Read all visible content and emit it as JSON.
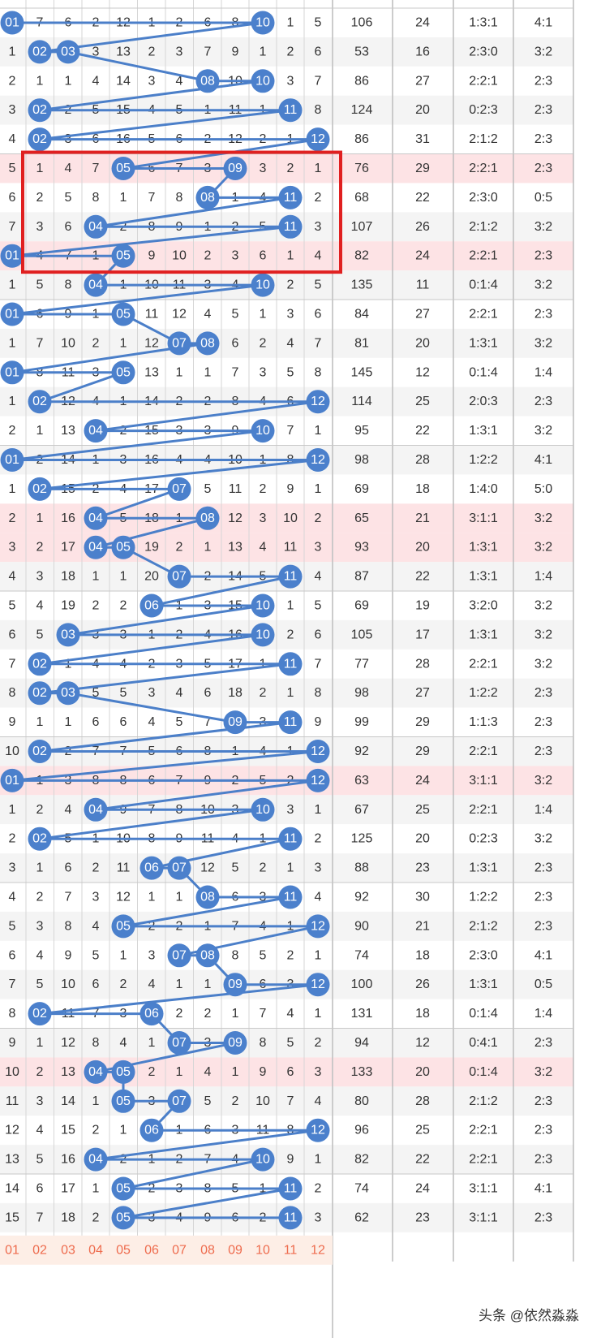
{
  "chart_data": {
    "type": "table",
    "columns": [
      "01",
      "02",
      "03",
      "04",
      "05",
      "06",
      "07",
      "08",
      "09",
      "10",
      "11",
      "12"
    ],
    "rows": [
      {
        "cells": [
          "01",
          "7",
          "6",
          "2",
          "12",
          "1",
          "2",
          "6",
          "8",
          "10",
          "1",
          "5"
        ],
        "hits": [
          1,
          10
        ],
        "sum": "106",
        "span": "24",
        "ratio1": "1:3:1",
        "ratio2": "4:1",
        "hl": false
      },
      {
        "cells": [
          "1",
          "02",
          "03",
          "3",
          "13",
          "2",
          "3",
          "7",
          "9",
          "1",
          "2",
          "6"
        ],
        "hits": [
          2,
          3
        ],
        "sum": "53",
        "span": "16",
        "ratio1": "2:3:0",
        "ratio2": "3:2",
        "hl": false
      },
      {
        "cells": [
          "2",
          "1",
          "1",
          "4",
          "14",
          "3",
          "4",
          "08",
          "10",
          "10",
          "3",
          "7"
        ],
        "hits": [
          8,
          10
        ],
        "sum": "86",
        "span": "27",
        "ratio1": "2:2:1",
        "ratio2": "2:3",
        "hl": false
      },
      {
        "cells": [
          "3",
          "02",
          "2",
          "5",
          "15",
          "4",
          "5",
          "1",
          "11",
          "1",
          "11",
          "8"
        ],
        "hits": [
          2,
          11
        ],
        "sum": "124",
        "span": "20",
        "ratio1": "0:2:3",
        "ratio2": "2:3",
        "hl": false
      },
      {
        "cells": [
          "4",
          "02",
          "3",
          "6",
          "16",
          "5",
          "6",
          "2",
          "12",
          "2",
          "1",
          "12"
        ],
        "hits": [
          2,
          12
        ],
        "sum": "86",
        "span": "31",
        "ratio1": "2:1:2",
        "ratio2": "2:3",
        "hl": false
      },
      {
        "cells": [
          "5",
          "1",
          "4",
          "7",
          "05",
          "6",
          "7",
          "3",
          "09",
          "3",
          "2",
          "1"
        ],
        "hits": [
          5,
          9
        ],
        "sum": "76",
        "span": "29",
        "ratio1": "2:2:1",
        "ratio2": "2:3",
        "hl": true
      },
      {
        "cells": [
          "6",
          "2",
          "5",
          "8",
          "1",
          "7",
          "8",
          "08",
          "1",
          "4",
          "11",
          "2"
        ],
        "hits": [
          8,
          11
        ],
        "sum": "68",
        "span": "22",
        "ratio1": "2:3:0",
        "ratio2": "0:5",
        "hl": false
      },
      {
        "cells": [
          "7",
          "3",
          "6",
          "04",
          "2",
          "8",
          "9",
          "1",
          "2",
          "5",
          "11",
          "3"
        ],
        "hits": [
          4,
          11
        ],
        "sum": "107",
        "span": "26",
        "ratio1": "2:1:2",
        "ratio2": "3:2",
        "hl": false
      },
      {
        "cells": [
          "01",
          "4",
          "7",
          "1",
          "05",
          "9",
          "10",
          "2",
          "3",
          "6",
          "1",
          "4"
        ],
        "hits": [
          1,
          5
        ],
        "sum": "82",
        "span": "24",
        "ratio1": "2:2:1",
        "ratio2": "2:3",
        "hl": true
      },
      {
        "cells": [
          "1",
          "5",
          "8",
          "04",
          "1",
          "10",
          "11",
          "3",
          "4",
          "10",
          "2",
          "5"
        ],
        "hits": [
          4,
          10
        ],
        "sum": "135",
        "span": "11",
        "ratio1": "0:1:4",
        "ratio2": "3:2",
        "hl": false
      },
      {
        "cells": [
          "01",
          "6",
          "9",
          "1",
          "05",
          "11",
          "12",
          "4",
          "5",
          "1",
          "3",
          "6"
        ],
        "hits": [
          1,
          5
        ],
        "sum": "84",
        "span": "27",
        "ratio1": "2:2:1",
        "ratio2": "2:3",
        "hl": false
      },
      {
        "cells": [
          "1",
          "7",
          "10",
          "2",
          "1",
          "12",
          "07",
          "08",
          "6",
          "2",
          "4",
          "7"
        ],
        "hits": [
          7,
          8
        ],
        "sum": "81",
        "span": "20",
        "ratio1": "1:3:1",
        "ratio2": "3:2",
        "hl": false
      },
      {
        "cells": [
          "01",
          "8",
          "11",
          "3",
          "05",
          "13",
          "1",
          "1",
          "7",
          "3",
          "5",
          "8"
        ],
        "hits": [
          1,
          5
        ],
        "sum": "145",
        "span": "12",
        "ratio1": "0:1:4",
        "ratio2": "1:4",
        "hl": false
      },
      {
        "cells": [
          "1",
          "02",
          "12",
          "4",
          "1",
          "14",
          "2",
          "2",
          "8",
          "4",
          "6",
          "12"
        ],
        "hits": [
          2,
          12
        ],
        "sum": "114",
        "span": "25",
        "ratio1": "2:0:3",
        "ratio2": "2:3",
        "hl": false
      },
      {
        "cells": [
          "2",
          "1",
          "13",
          "04",
          "2",
          "15",
          "3",
          "3",
          "9",
          "10",
          "7",
          "1"
        ],
        "hits": [
          4,
          10
        ],
        "sum": "95",
        "span": "22",
        "ratio1": "1:3:1",
        "ratio2": "3:2",
        "hl": false
      },
      {
        "cells": [
          "01",
          "2",
          "14",
          "1",
          "3",
          "16",
          "4",
          "4",
          "10",
          "1",
          "8",
          "12"
        ],
        "hits": [
          1,
          12
        ],
        "sum": "98",
        "span": "28",
        "ratio1": "1:2:2",
        "ratio2": "4:1",
        "hl": false
      },
      {
        "cells": [
          "1",
          "02",
          "15",
          "2",
          "4",
          "17",
          "07",
          "5",
          "11",
          "2",
          "9",
          "1"
        ],
        "hits": [
          2,
          7
        ],
        "sum": "69",
        "span": "18",
        "ratio1": "1:4:0",
        "ratio2": "5:0",
        "hl": false
      },
      {
        "cells": [
          "2",
          "1",
          "16",
          "04",
          "5",
          "18",
          "1",
          "08",
          "12",
          "3",
          "10",
          "2"
        ],
        "hits": [
          4,
          8
        ],
        "sum": "65",
        "span": "21",
        "ratio1": "3:1:1",
        "ratio2": "3:2",
        "hl": true
      },
      {
        "cells": [
          "3",
          "2",
          "17",
          "04",
          "05",
          "19",
          "2",
          "1",
          "13",
          "4",
          "11",
          "3"
        ],
        "hits": [
          4,
          5
        ],
        "sum": "93",
        "span": "20",
        "ratio1": "1:3:1",
        "ratio2": "3:2",
        "hl": true
      },
      {
        "cells": [
          "4",
          "3",
          "18",
          "1",
          "1",
          "20",
          "07",
          "2",
          "14",
          "5",
          "11",
          "4"
        ],
        "hits": [
          7,
          11
        ],
        "sum": "87",
        "span": "22",
        "ratio1": "1:3:1",
        "ratio2": "1:4",
        "hl": false
      },
      {
        "cells": [
          "5",
          "4",
          "19",
          "2",
          "2",
          "06",
          "1",
          "3",
          "15",
          "10",
          "1",
          "5"
        ],
        "hits": [
          6,
          10
        ],
        "sum": "69",
        "span": "19",
        "ratio1": "3:2:0",
        "ratio2": "3:2",
        "hl": false
      },
      {
        "cells": [
          "6",
          "5",
          "03",
          "3",
          "3",
          "1",
          "2",
          "4",
          "16",
          "10",
          "2",
          "6"
        ],
        "hits": [
          3,
          10
        ],
        "sum": "105",
        "span": "17",
        "ratio1": "1:3:1",
        "ratio2": "3:2",
        "hl": false
      },
      {
        "cells": [
          "7",
          "02",
          "1",
          "4",
          "4",
          "2",
          "3",
          "5",
          "17",
          "1",
          "11",
          "7"
        ],
        "hits": [
          2,
          11
        ],
        "sum": "77",
        "span": "28",
        "ratio1": "2:2:1",
        "ratio2": "3:2",
        "hl": false
      },
      {
        "cells": [
          "8",
          "02",
          "03",
          "5",
          "5",
          "3",
          "4",
          "6",
          "18",
          "2",
          "1",
          "8"
        ],
        "hits": [
          2,
          3
        ],
        "sum": "98",
        "span": "27",
        "ratio1": "1:2:2",
        "ratio2": "2:3",
        "hl": false
      },
      {
        "cells": [
          "9",
          "1",
          "1",
          "6",
          "6",
          "4",
          "5",
          "7",
          "09",
          "3",
          "11",
          "9"
        ],
        "hits": [
          9,
          11
        ],
        "sum": "99",
        "span": "29",
        "ratio1": "1:1:3",
        "ratio2": "2:3",
        "hl": false
      },
      {
        "cells": [
          "10",
          "02",
          "2",
          "7",
          "7",
          "5",
          "6",
          "8",
          "1",
          "4",
          "1",
          "12"
        ],
        "hits": [
          2,
          12
        ],
        "sum": "92",
        "span": "29",
        "ratio1": "2:2:1",
        "ratio2": "2:3",
        "hl": false
      },
      {
        "cells": [
          "01",
          "1",
          "3",
          "8",
          "8",
          "6",
          "7",
          "9",
          "2",
          "5",
          "2",
          "12"
        ],
        "hits": [
          1,
          12
        ],
        "sum": "63",
        "span": "24",
        "ratio1": "3:1:1",
        "ratio2": "3:2",
        "hl": true
      },
      {
        "cells": [
          "1",
          "2",
          "4",
          "04",
          "9",
          "7",
          "8",
          "10",
          "3",
          "10",
          "3",
          "1"
        ],
        "hits": [
          4,
          10
        ],
        "sum": "67",
        "span": "25",
        "ratio1": "2:2:1",
        "ratio2": "1:4",
        "hl": false
      },
      {
        "cells": [
          "2",
          "02",
          "5",
          "1",
          "10",
          "8",
          "9",
          "11",
          "4",
          "1",
          "11",
          "2"
        ],
        "hits": [
          2,
          11
        ],
        "sum": "125",
        "span": "20",
        "ratio1": "0:2:3",
        "ratio2": "3:2",
        "hl": false
      },
      {
        "cells": [
          "3",
          "1",
          "6",
          "2",
          "11",
          "06",
          "07",
          "12",
          "5",
          "2",
          "1",
          "3"
        ],
        "hits": [
          6,
          7
        ],
        "sum": "88",
        "span": "23",
        "ratio1": "1:3:1",
        "ratio2": "2:3",
        "hl": false
      },
      {
        "cells": [
          "4",
          "2",
          "7",
          "3",
          "12",
          "1",
          "1",
          "08",
          "6",
          "3",
          "11",
          "4"
        ],
        "hits": [
          8,
          11
        ],
        "sum": "92",
        "span": "30",
        "ratio1": "1:2:2",
        "ratio2": "2:3",
        "hl": false
      },
      {
        "cells": [
          "5",
          "3",
          "8",
          "4",
          "05",
          "2",
          "2",
          "1",
          "7",
          "4",
          "1",
          "12"
        ],
        "hits": [
          5,
          12
        ],
        "sum": "90",
        "span": "21",
        "ratio1": "2:1:2",
        "ratio2": "2:3",
        "hl": false
      },
      {
        "cells": [
          "6",
          "4",
          "9",
          "5",
          "1",
          "3",
          "07",
          "08",
          "8",
          "5",
          "2",
          "1"
        ],
        "hits": [
          7,
          8
        ],
        "sum": "74",
        "span": "18",
        "ratio1": "2:3:0",
        "ratio2": "4:1",
        "hl": false
      },
      {
        "cells": [
          "7",
          "5",
          "10",
          "6",
          "2",
          "4",
          "1",
          "1",
          "09",
          "6",
          "3",
          "12"
        ],
        "hits": [
          9,
          12
        ],
        "sum": "100",
        "span": "26",
        "ratio1": "1:3:1",
        "ratio2": "0:5",
        "hl": false
      },
      {
        "cells": [
          "8",
          "02",
          "11",
          "7",
          "3",
          "06",
          "2",
          "2",
          "1",
          "7",
          "4",
          "1"
        ],
        "hits": [
          2,
          6
        ],
        "sum": "131",
        "span": "18",
        "ratio1": "0:1:4",
        "ratio2": "1:4",
        "hl": false
      },
      {
        "cells": [
          "9",
          "1",
          "12",
          "8",
          "4",
          "1",
          "07",
          "3",
          "09",
          "8",
          "5",
          "2"
        ],
        "hits": [
          7,
          9
        ],
        "sum": "94",
        "span": "12",
        "ratio1": "0:4:1",
        "ratio2": "2:3",
        "hl": false
      },
      {
        "cells": [
          "10",
          "2",
          "13",
          "04",
          "05",
          "2",
          "1",
          "4",
          "1",
          "9",
          "6",
          "3"
        ],
        "hits": [
          4,
          5
        ],
        "sum": "133",
        "span": "20",
        "ratio1": "0:1:4",
        "ratio2": "3:2",
        "hl": true
      },
      {
        "cells": [
          "11",
          "3",
          "14",
          "1",
          "05",
          "3",
          "07",
          "5",
          "2",
          "10",
          "7",
          "4"
        ],
        "hits": [
          5,
          7
        ],
        "sum": "80",
        "span": "28",
        "ratio1": "2:1:2",
        "ratio2": "2:3",
        "hl": false
      },
      {
        "cells": [
          "12",
          "4",
          "15",
          "2",
          "1",
          "06",
          "1",
          "6",
          "3",
          "11",
          "8",
          "12"
        ],
        "hits": [
          6,
          12
        ],
        "sum": "96",
        "span": "25",
        "ratio1": "2:2:1",
        "ratio2": "2:3",
        "hl": false
      },
      {
        "cells": [
          "13",
          "5",
          "16",
          "04",
          "2",
          "1",
          "2",
          "7",
          "4",
          "10",
          "9",
          "1"
        ],
        "hits": [
          4,
          10
        ],
        "sum": "82",
        "span": "22",
        "ratio1": "2:2:1",
        "ratio2": "2:3",
        "hl": false
      },
      {
        "cells": [
          "14",
          "6",
          "17",
          "1",
          "05",
          "2",
          "3",
          "8",
          "5",
          "1",
          "11",
          "2"
        ],
        "hits": [
          5,
          11
        ],
        "sum": "74",
        "span": "24",
        "ratio1": "3:1:1",
        "ratio2": "4:1",
        "hl": false
      },
      {
        "cells": [
          "15",
          "7",
          "18",
          "2",
          "05",
          "3",
          "4",
          "9",
          "6",
          "2",
          "11",
          "3"
        ],
        "hits": [
          5,
          11
        ],
        "sum": "62",
        "span": "23",
        "ratio1": "3:1:1",
        "ratio2": "2:3",
        "hl": false
      }
    ],
    "footer": [
      "01",
      "02",
      "03",
      "04",
      "05",
      "06",
      "07",
      "08",
      "09",
      "10",
      "11",
      "12"
    ],
    "highlight_box_rows": [
      5,
      8
    ],
    "colors": {
      "ball": "#4b80cc",
      "line": "#4b7fc9",
      "stripe": "#fde3e5",
      "alt": "#f4f4f4",
      "box": "#e02020",
      "footer_bg": "#fdeee6",
      "footer_text": "#ee6b4d"
    }
  },
  "watermark": "头条 @依然淼淼"
}
